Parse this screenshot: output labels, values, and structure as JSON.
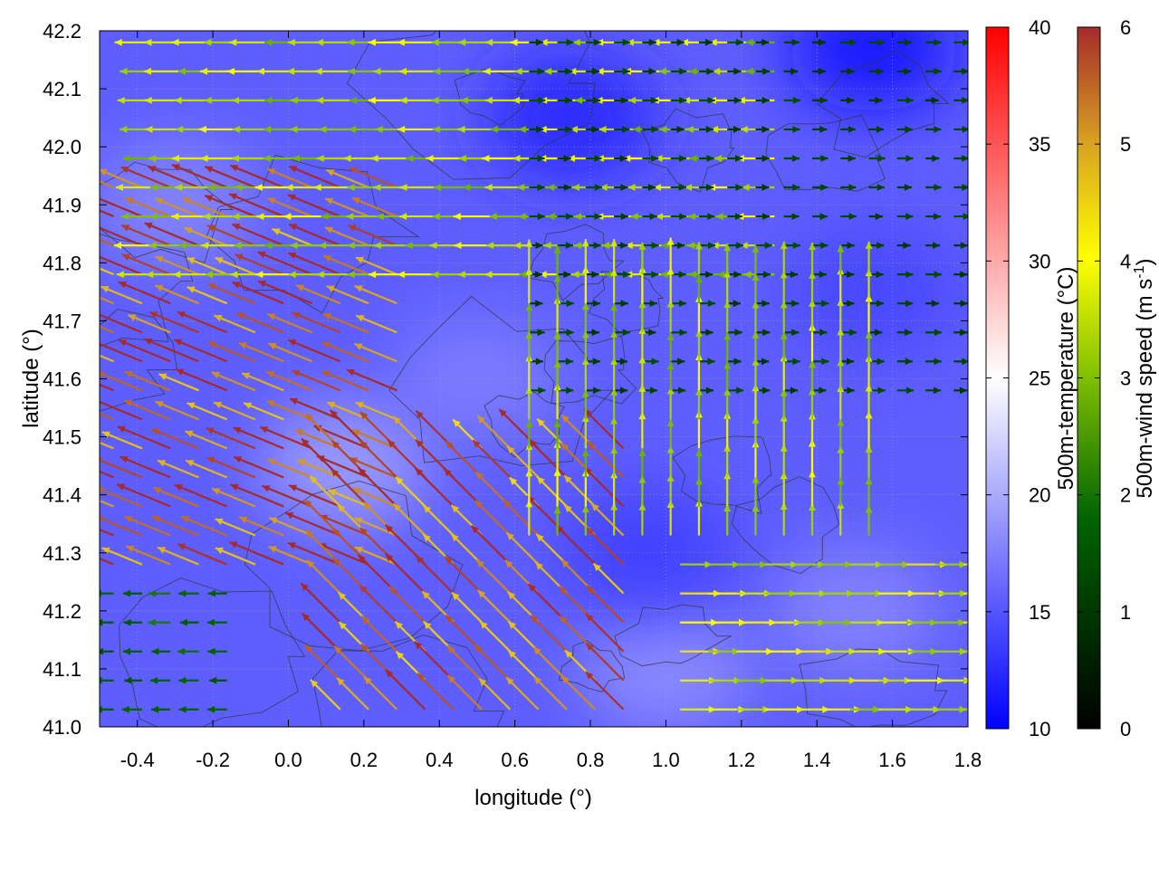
{
  "chart_data": {
    "type": "heatmap",
    "subtype": "temperature field with wind vectors and contours",
    "xlabel": "longitude (°)",
    "ylabel": "latitude (°)",
    "xlim": [
      -0.5,
      1.8
    ],
    "ylim": [
      41.0,
      42.2
    ],
    "x_ticks": [
      -0.4,
      -0.2,
      0.0,
      0.2,
      0.4,
      0.6,
      0.8,
      1.0,
      1.2,
      1.4,
      1.6,
      1.8
    ],
    "x_tick_labels": [
      "-0.4",
      "-0.2",
      "0.0",
      "0.2",
      "0.4",
      "0.6",
      "0.8",
      "1.0",
      "1.2",
      "1.4",
      "1.6",
      "1.8"
    ],
    "y_ticks": [
      41.0,
      41.1,
      41.2,
      41.3,
      41.4,
      41.5,
      41.6,
      41.7,
      41.8,
      41.9,
      42.0,
      42.1,
      42.2
    ],
    "y_tick_labels": [
      "41.0",
      "41.1",
      "41.2",
      "41.3",
      "41.4",
      "41.5",
      "41.6",
      "41.7",
      "41.8",
      "41.9",
      "42.0",
      "42.1",
      "42.2"
    ],
    "grid": true,
    "colorbars": [
      {
        "label": "500m-temperature (°C)",
        "range": [
          10,
          40
        ],
        "ticks": [
          10,
          15,
          20,
          25,
          30,
          35,
          40
        ],
        "tick_labels": [
          "10",
          "15",
          "20",
          "25",
          "30",
          "35",
          "40"
        ],
        "colors": [
          "#0000ff",
          "#ffffff",
          "#ff0000"
        ]
      },
      {
        "label_parts": [
          "500m-wind speed (m s",
          "-1",
          ")"
        ],
        "range": [
          0,
          6
        ],
        "ticks": [
          0,
          1,
          2,
          3,
          4,
          5,
          6
        ],
        "tick_labels": [
          "0",
          "1",
          "2",
          "3",
          "4",
          "5",
          "6"
        ],
        "colors": [
          "#000000",
          "#006400",
          "#7fbf00",
          "#ffff00",
          "#daa520",
          "#a52a2a"
        ]
      }
    ],
    "temperature_field": {
      "background_c": 15.5,
      "warm_spots": [
        {
          "lon": 0.15,
          "lat": 41.45,
          "value_c": 19.5
        },
        {
          "lon": 1.0,
          "lat": 41.1,
          "value_c": 18.5
        },
        {
          "lon": -0.3,
          "lat": 41.9,
          "value_c": 18
        },
        {
          "lon": 0.5,
          "lat": 41.6,
          "value_c": 17.5
        },
        {
          "lon": 1.5,
          "lat": 41.2,
          "value_c": 18
        }
      ],
      "cold_spots": [
        {
          "lon": 1.55,
          "lat": 42.17,
          "value_c": 11
        },
        {
          "lon": 0.75,
          "lat": 42.05,
          "value_c": 12
        },
        {
          "lon": 0.95,
          "lat": 41.3,
          "value_c": 13.5
        },
        {
          "lon": 1.55,
          "lat": 41.75,
          "value_c": 14
        }
      ]
    },
    "wind_regimes": [
      {
        "region": "west, mid latitudes",
        "lon": [
          -0.5,
          0.35
        ],
        "lat": [
          41.25,
          41.95
        ],
        "direction_to": "WNW",
        "speed_ms": 5.8
      },
      {
        "region": "southwest diagonal band",
        "lon": [
          0.1,
          0.9
        ],
        "lat": [
          41.0,
          41.5
        ],
        "direction_to": "NW",
        "speed_ms": 5.5
      },
      {
        "region": "northern band",
        "lon": [
          -0.4,
          1.3
        ],
        "lat": [
          41.75,
          42.2
        ],
        "direction_to": "W",
        "speed_ms": 3.5
      },
      {
        "region": "northeast calm",
        "lon": [
          0.6,
          1.8
        ],
        "lat": [
          41.55,
          42.2
        ],
        "direction_to": "E",
        "speed_ms": 1.2
      },
      {
        "region": "southeast band",
        "lon": [
          1.0,
          1.8
        ],
        "lat": [
          41.0,
          41.3
        ],
        "direction_to": "E",
        "speed_ms": 3.8
      },
      {
        "region": "central north-flowing",
        "lon": [
          0.6,
          1.6
        ],
        "lat": [
          41.3,
          41.8
        ],
        "direction_to": "N",
        "speed_ms": 3.5
      },
      {
        "region": "southwest corner",
        "lon": [
          -0.5,
          -0.1
        ],
        "lat": [
          41.0,
          41.25
        ],
        "direction_to": "W",
        "speed_ms": 1.8
      }
    ]
  }
}
